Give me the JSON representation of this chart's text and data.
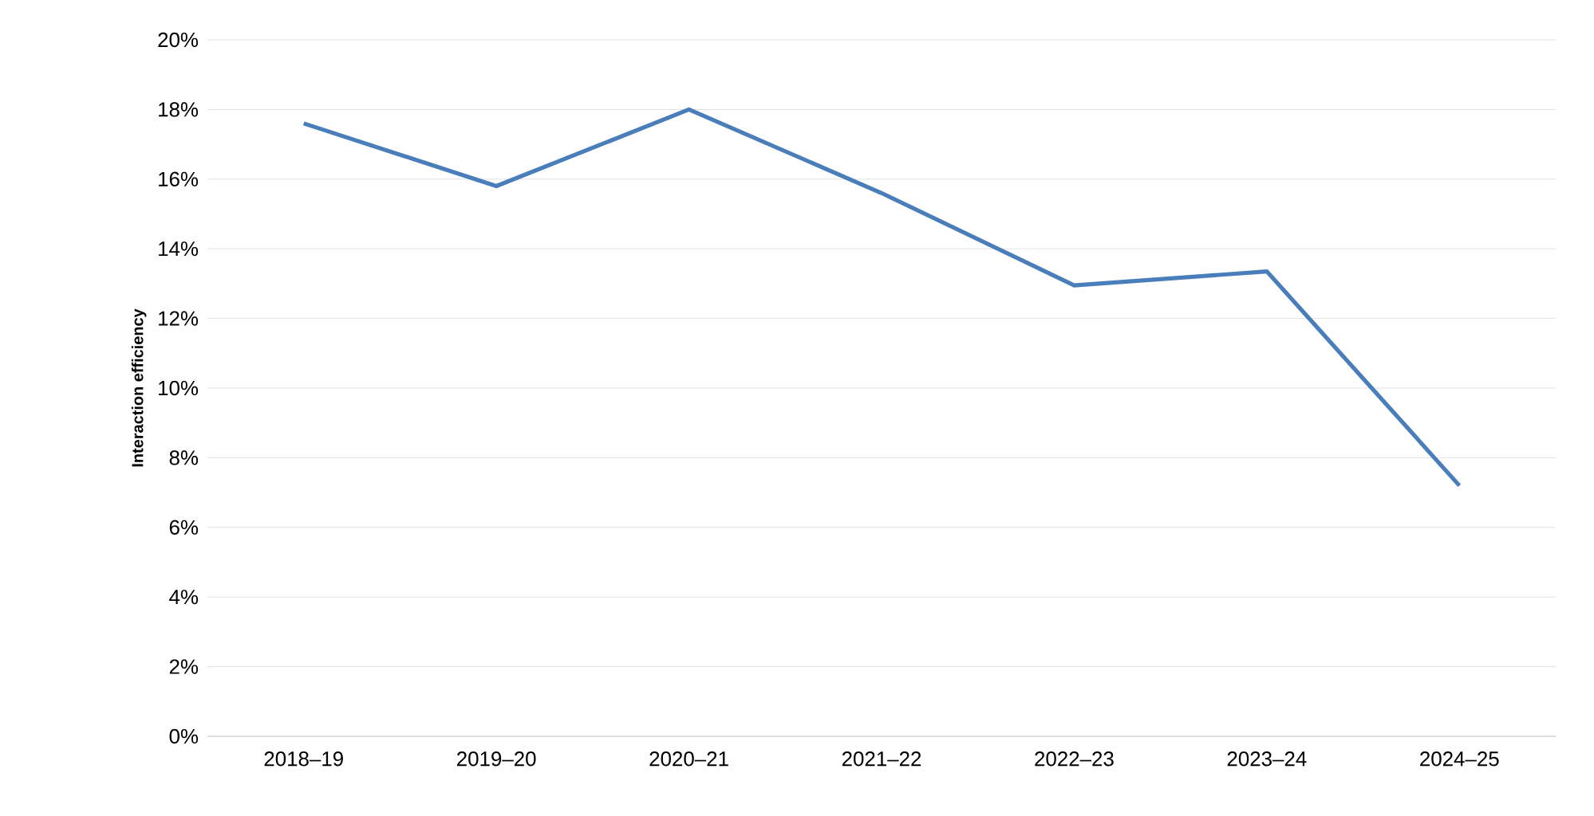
{
  "chart_data": {
    "type": "line",
    "ylabel": "Interaction efficiency",
    "categories": [
      "2018–19",
      "2019–20",
      "2020–21",
      "2021–22",
      "2022–23",
      "2023–24",
      "2024–25"
    ],
    "series": [
      {
        "color": "#4a7ebb",
        "values": [
          17.6,
          15.8,
          18.0,
          15.6,
          12.95,
          13.35,
          7.2
        ]
      }
    ],
    "ylim": [
      0,
      20
    ],
    "yticks": [
      {
        "value": 0,
        "label": "0%"
      },
      {
        "value": 2,
        "label": "2%"
      },
      {
        "value": 4,
        "label": "4%"
      },
      {
        "value": 6,
        "label": "6%"
      },
      {
        "value": 8,
        "label": "8%"
      },
      {
        "value": 10,
        "label": "10%"
      },
      {
        "value": 12,
        "label": "12%"
      },
      {
        "value": 14,
        "label": "14%"
      },
      {
        "value": 16,
        "label": "16%"
      },
      {
        "value": 18,
        "label": "18%"
      },
      {
        "value": 20,
        "label": "20%"
      }
    ],
    "grid": "y",
    "marker": "none",
    "line_style": "solid"
  }
}
